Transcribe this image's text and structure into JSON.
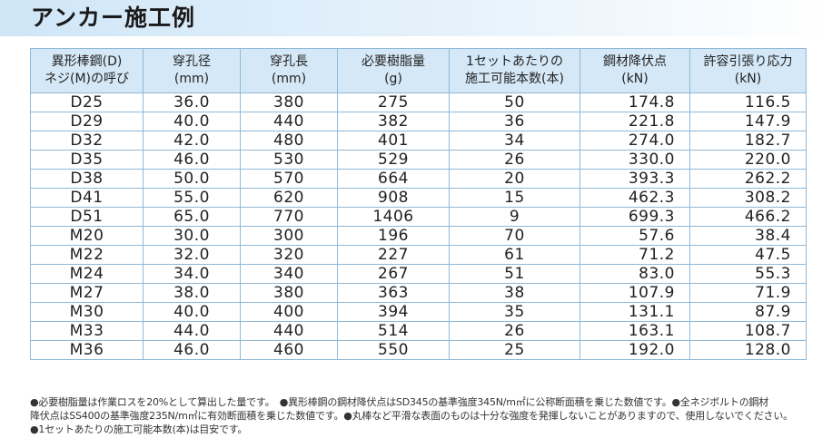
{
  "title": "アンカー施工例",
  "table": {
    "headers": [
      [
        "異形棒鋼(D)",
        "ネジ(M)の呼び"
      ],
      [
        "穿孔径",
        "(mm)"
      ],
      [
        "穿孔長",
        "(mm)"
      ],
      [
        "必要樹脂量",
        "(g)"
      ],
      [
        "1セットあたりの",
        "施工可能本数(本)"
      ],
      [
        "鋼材降伏点",
        "(kN)"
      ],
      [
        "許容引張り応力",
        "(kN)"
      ]
    ],
    "rows": [
      [
        "D25",
        "36.0",
        "380",
        "275",
        "50",
        "174.8",
        "116.5"
      ],
      [
        "D29",
        "40.0",
        "440",
        "382",
        "36",
        "221.8",
        "147.9"
      ],
      [
        "D32",
        "42.0",
        "480",
        "401",
        "34",
        "274.0",
        "182.7"
      ],
      [
        "D35",
        "46.0",
        "530",
        "529",
        "26",
        "330.0",
        "220.0"
      ],
      [
        "D38",
        "50.0",
        "570",
        "664",
        "20",
        "393.3",
        "262.2"
      ],
      [
        "D41",
        "55.0",
        "620",
        "908",
        "15",
        "462.3",
        "308.2"
      ],
      [
        "D51",
        "65.0",
        "770",
        "1406",
        "9",
        "699.3",
        "466.2"
      ],
      [
        "M20",
        "30.0",
        "300",
        "196",
        "70",
        "57.6",
        "38.4"
      ],
      [
        "M22",
        "32.0",
        "320",
        "227",
        "61",
        "71.2",
        "47.5"
      ],
      [
        "M24",
        "34.0",
        "340",
        "267",
        "51",
        "83.0",
        "55.3"
      ],
      [
        "M27",
        "38.0",
        "380",
        "363",
        "38",
        "107.9",
        "71.9"
      ],
      [
        "M30",
        "40.0",
        "400",
        "394",
        "35",
        "131.1",
        "87.9"
      ],
      [
        "M33",
        "44.0",
        "440",
        "514",
        "26",
        "163.1",
        "108.7"
      ],
      [
        "M36",
        "46.0",
        "460",
        "550",
        "25",
        "192.0",
        "128.0"
      ]
    ]
  },
  "notes": [
    "●必要樹脂量は作業ロスを20%として算出した量です。　●異形棒鋼の鋼材降伏点はSD345の基準強度345N/m㎡に公称断面積を乗じた数値です。●全ネジボルトの鋼材",
    "降伏点はSS400の基準強度235N/m㎡に有効断面積を乗じた数値です。●丸棒など平滑な表面のものは十分な強度を発揮しないことがありますので、使用しないでください。",
    "●1セットあたりの施工可能本数(本)は目安です。"
  ]
}
